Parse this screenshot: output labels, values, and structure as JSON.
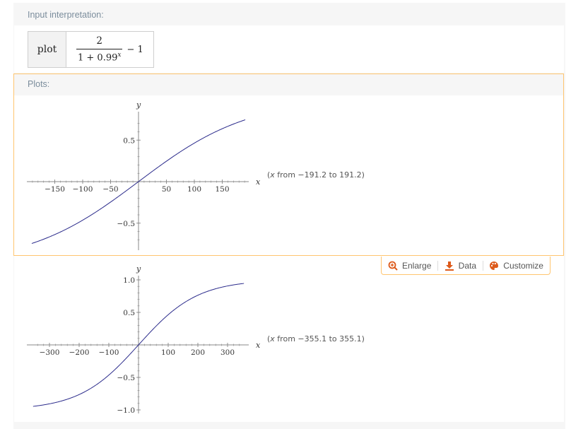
{
  "input_pod": {
    "title": "Input interpretation:",
    "keyword": "plot",
    "numerator": "2",
    "denominator_base": "1 + 0.99",
    "denominator_exponent": "x",
    "suffix": "− 1"
  },
  "plots_pod": {
    "title": "Plots:",
    "toolbar": {
      "enlarge": "Enlarge",
      "data": "Data",
      "customize": "Customize"
    },
    "accent_color": "#dd5a1b"
  },
  "chart_data": [
    {
      "type": "line",
      "function": "2/(1+0.99^x) - 1",
      "xlabel": "x",
      "ylabel": "y",
      "xlim": [
        -191.2,
        191.2
      ],
      "ylim": [
        -0.75,
        0.75
      ],
      "range_note_prefix": "(",
      "range_note_var": "x",
      "range_note_text": " from −191.2 to 191.2)",
      "x_ticks": [
        -150,
        -100,
        -50,
        50,
        100,
        150
      ],
      "x_tick_labels": [
        "−150",
        "−100",
        "−50",
        "50",
        "100",
        "150"
      ],
      "y_ticks": [
        0.5,
        -0.5
      ],
      "y_tick_labels": [
        "0.5",
        "−0.5"
      ],
      "line_color": "#2c2c8c"
    },
    {
      "type": "line",
      "function": "2/(1+0.99^x) - 1",
      "xlabel": "x",
      "ylabel": "y",
      "xlim": [
        -355.1,
        355.1
      ],
      "ylim": [
        -1.0,
        1.0
      ],
      "range_note_prefix": "(",
      "range_note_var": "x",
      "range_note_text": " from −355.1 to 355.1)",
      "x_ticks": [
        -300,
        -200,
        -100,
        100,
        200,
        300
      ],
      "x_tick_labels": [
        "−300",
        "−200",
        "−100",
        "100",
        "200",
        "300"
      ],
      "y_ticks": [
        1.0,
        0.5,
        -0.5,
        -1.0
      ],
      "y_tick_labels": [
        "1.0",
        "0.5",
        "−0.5",
        "−1.0"
      ],
      "line_color": "#2c2c8c"
    }
  ]
}
